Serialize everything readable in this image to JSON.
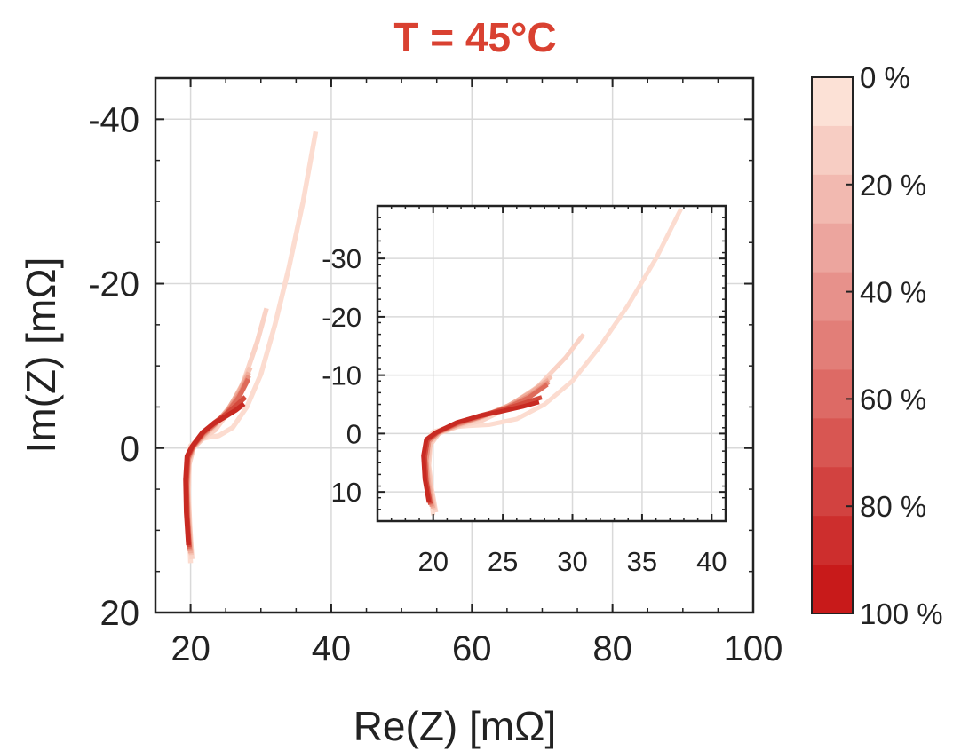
{
  "chart_data": {
    "type": "line",
    "title": "T = 45°C",
    "title_color": "#d94131",
    "xlabel": "Re(Z) [mΩ]",
    "ylabel": "Im(Z) [mΩ]",
    "xlim": [
      15,
      100
    ],
    "ylim": [
      20,
      -45
    ],
    "y_reversed": true,
    "grid": true,
    "x_ticks": [
      20,
      40,
      60,
      80,
      100
    ],
    "y_ticks": [
      -40,
      -20,
      0,
      20
    ],
    "inset": {
      "xlim": [
        16,
        41
      ],
      "ylim": [
        15,
        -39
      ],
      "x_ticks": [
        20,
        25,
        30,
        35,
        40
      ],
      "y_ticks": [
        -30,
        -20,
        -10,
        0,
        10
      ],
      "grid": true
    },
    "colorbar": {
      "labels": [
        "0 %",
        "20 %",
        "40 %",
        "60 %",
        "80 %",
        "100 %"
      ],
      "steps": 11,
      "color_top": "#fce1d6",
      "color_bottom": "#c81a1a"
    },
    "series": [
      {
        "color": "#fcdcd0",
        "x": [
          20.0,
          19.8,
          19.6,
          19.5,
          19.6,
          20.0,
          21.0,
          22.5,
          24.0,
          26.0,
          28.0,
          30.0,
          32.0,
          34.0,
          36.0,
          37.8
        ],
        "y": [
          14.0,
          10.0,
          6.0,
          3.0,
          1.0,
          -0.3,
          -1.0,
          -1.3,
          -1.5,
          -2.5,
          -5.0,
          -9.0,
          -15.0,
          -22.0,
          -30.0,
          -38.5
        ]
      },
      {
        "color": "#fad3c6",
        "x": [
          20.2,
          19.9,
          19.7,
          19.8,
          20.4,
          21.8,
          23.5,
          25.5,
          27.5,
          29.5,
          30.8
        ],
        "y": [
          13.5,
          9.5,
          5.5,
          2.0,
          0.0,
          -1.2,
          -2.2,
          -4.5,
          -8.0,
          -13.0,
          -17.0
        ]
      },
      {
        "color": "#f6c4b4",
        "x": [
          20.1,
          19.8,
          19.6,
          19.8,
          20.5,
          22.0,
          23.8,
          25.6,
          27.2,
          28.5
        ],
        "y": [
          13.0,
          9.0,
          5.0,
          1.5,
          -0.2,
          -1.5,
          -3.0,
          -5.0,
          -7.5,
          -9.8
        ]
      },
      {
        "color": "#f0ad9b",
        "x": [
          20.0,
          19.7,
          19.5,
          19.7,
          20.4,
          21.9,
          23.6,
          25.4,
          27.0,
          28.3
        ],
        "y": [
          12.8,
          8.8,
          4.8,
          1.4,
          -0.2,
          -1.6,
          -3.0,
          -4.8,
          -7.0,
          -9.2
        ]
      },
      {
        "color": "#e8907e",
        "x": [
          19.9,
          19.6,
          19.5,
          19.7,
          20.4,
          21.9,
          23.6,
          25.4,
          27.0,
          28.3
        ],
        "y": [
          12.5,
          8.5,
          4.5,
          1.3,
          -0.2,
          -1.7,
          -3.0,
          -4.6,
          -6.6,
          -8.8
        ]
      },
      {
        "color": "#de6b5a",
        "x": [
          19.8,
          19.5,
          19.4,
          19.6,
          20.3,
          21.8,
          23.5,
          25.3,
          26.9,
          28.2
        ],
        "y": [
          12.2,
          8.2,
          4.2,
          1.2,
          -0.2,
          -1.8,
          -3.0,
          -4.4,
          -6.2,
          -8.4
        ]
      },
      {
        "color": "#d44a3c",
        "x": [
          19.8,
          19.5,
          19.4,
          19.6,
          20.3,
          21.8,
          23.4,
          25.0,
          26.5,
          27.8
        ],
        "y": [
          12.0,
          8.0,
          4.0,
          1.1,
          -0.2,
          -1.9,
          -3.1,
          -4.1,
          -5.2,
          -6.2
        ]
      },
      {
        "color": "#c82a22",
        "x": [
          19.7,
          19.4,
          19.3,
          19.5,
          20.2,
          21.7,
          23.3,
          24.9,
          26.4,
          27.6
        ],
        "y": [
          11.8,
          7.8,
          3.8,
          1.0,
          -0.2,
          -1.9,
          -3.0,
          -3.8,
          -4.6,
          -5.4
        ]
      }
    ]
  }
}
